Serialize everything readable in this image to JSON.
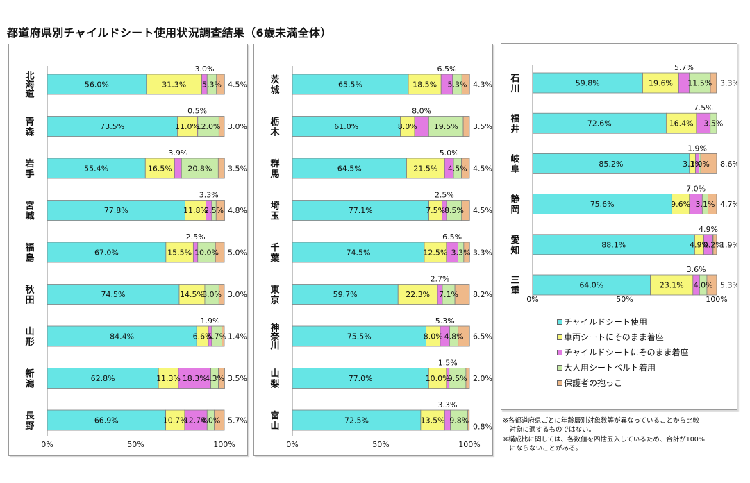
{
  "title": "都道府県別チャイルドシート使用状況調査結果（6歳未満全体）",
  "colors": {
    "series": [
      "#66e5e5",
      "#f7f77a",
      "#e27be2",
      "#c7eba8",
      "#efb98a"
    ],
    "outline": "#7f7f7f"
  },
  "legend": [
    {
      "label": "チャイルドシート使用",
      "color": "#66e5e5"
    },
    {
      "label": "車両シートにそのまま着座",
      "color": "#f7f77a"
    },
    {
      "label": "チャイルドシートにそのまま着座",
      "color": "#e27be2"
    },
    {
      "label": "大人用シートベルト着用",
      "color": "#c7eba8"
    },
    {
      "label": "保護者の抱っこ",
      "color": "#efb98a"
    }
  ],
  "notes": [
    "※各都道府県ごとに年齢層別対象数等が異なっていることから比較",
    "　対象に適するものではない。",
    "※構成比に関しては、各数値を四捨五入しているため、合計が100%",
    "　にならないことがある。"
  ],
  "chart_data": [
    {
      "type": "bar",
      "stacked": true,
      "orientation": "horizontal",
      "xlim": [
        0,
        100
      ],
      "xticks": [
        "0%",
        "50%",
        "100%"
      ],
      "series_names": [
        "チャイルドシート使用",
        "車両シートにそのまま着座",
        "チャイルドシートにそのまま着座",
        "大人用シートベルト着用",
        "保護者の抱っこ"
      ],
      "categories": [
        "北海道",
        "青森",
        "岩手",
        "宮城",
        "福島",
        "秋田",
        "山形",
        "新潟",
        "長野"
      ],
      "values": [
        [
          56.0,
          31.3,
          3.0,
          5.3,
          4.5
        ],
        [
          73.5,
          11.0,
          0.5,
          12.0,
          3.0
        ],
        [
          55.4,
          16.5,
          3.9,
          20.8,
          3.5
        ],
        [
          77.8,
          11.8,
          3.3,
          2.5,
          4.8
        ],
        [
          67.0,
          15.5,
          2.5,
          10.0,
          5.0
        ],
        [
          74.5,
          14.5,
          0.0,
          8.0,
          3.0
        ],
        [
          84.4,
          6.6,
          1.9,
          5.7,
          1.4
        ],
        [
          62.8,
          11.3,
          18.3,
          4.3,
          3.5
        ],
        [
          66.9,
          10.7,
          12.7,
          4.0,
          5.7
        ]
      ]
    },
    {
      "type": "bar",
      "stacked": true,
      "orientation": "horizontal",
      "xlim": [
        0,
        100
      ],
      "xticks": [
        "0%",
        "50%",
        "100%"
      ],
      "series_names": [
        "チャイルドシート使用",
        "車両シートにそのまま着座",
        "チャイルドシートにそのまま着座",
        "大人用シートベルト着用",
        "保護者の抱っこ"
      ],
      "categories": [
        "茨城",
        "栃木",
        "群馬",
        "埼玉",
        "千葉",
        "東京",
        "神奈川",
        "山梨",
        "富山"
      ],
      "values": [
        [
          65.5,
          18.5,
          6.5,
          5.3,
          4.3
        ],
        [
          61.0,
          8.0,
          8.0,
          19.5,
          3.5
        ],
        [
          64.5,
          21.5,
          5.0,
          4.5,
          4.5
        ],
        [
          77.1,
          7.5,
          2.5,
          8.5,
          4.5
        ],
        [
          74.5,
          12.5,
          6.5,
          3.3,
          3.3
        ],
        [
          59.7,
          22.3,
          2.7,
          7.1,
          8.2
        ],
        [
          75.5,
          8.0,
          5.3,
          4.8,
          6.5
        ],
        [
          77.0,
          10.0,
          1.5,
          9.5,
          2.0
        ],
        [
          72.5,
          13.5,
          3.3,
          9.8,
          0.8
        ]
      ]
    },
    {
      "type": "bar",
      "stacked": true,
      "orientation": "horizontal",
      "xlim": [
        0,
        100
      ],
      "xticks": [
        "0%",
        "50%",
        "100%"
      ],
      "series_names": [
        "チャイルドシート使用",
        "車両シートにそのまま着座",
        "チャイルドシートにそのまま着座",
        "大人用シートベルト着用",
        "保護者の抱っこ"
      ],
      "categories": [
        "石川",
        "福井",
        "岐阜",
        "静岡",
        "愛知",
        "三重"
      ],
      "values": [
        [
          59.8,
          19.6,
          5.7,
          11.5,
          3.3
        ],
        [
          72.6,
          16.4,
          7.5,
          3.5,
          0.0
        ],
        [
          85.2,
          3.3,
          1.9,
          1.0,
          8.6
        ],
        [
          75.6,
          9.6,
          7.0,
          3.1,
          4.7
        ],
        [
          88.1,
          4.9,
          4.9,
          0.2,
          1.9
        ],
        [
          64.0,
          23.1,
          3.6,
          4.0,
          5.3
        ]
      ]
    }
  ]
}
